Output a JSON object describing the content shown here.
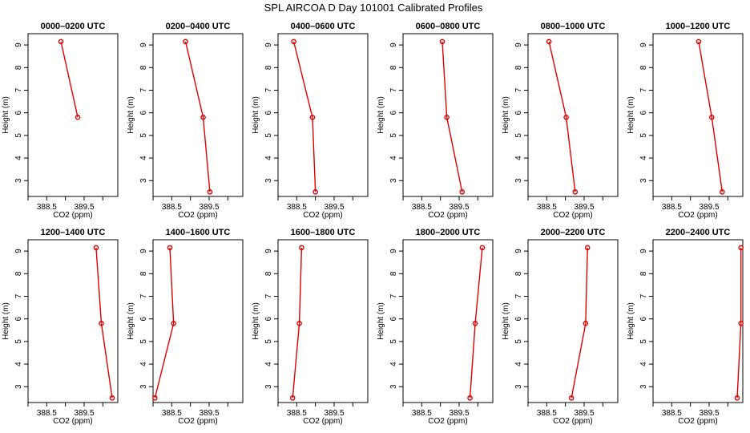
{
  "chart_data": {
    "type": "line",
    "title": "SPL AIRCOA D  Day 101001  Calibrated Profiles",
    "xlabel": "CO2 (ppm)",
    "ylabel": "Height (m)",
    "xlim": [
      388.0,
      390.4
    ],
    "ylim": [
      2.3,
      9.5
    ],
    "xticks": [
      "388.5",
      "389.5"
    ],
    "xtick_values": [
      388.5,
      389.5
    ],
    "yticks": [
      "3",
      "4",
      "5",
      "6",
      "7",
      "8",
      "9"
    ],
    "ytick_values": [
      3,
      4,
      5,
      6,
      7,
      8,
      9
    ],
    "grid": false,
    "line_color": "#dd0000",
    "panels": [
      {
        "title": "0000–0200 UTC",
        "x": [
          388.88,
          389.33
        ],
        "y": [
          9.15,
          5.8
        ]
      },
      {
        "title": "0200–0400 UTC",
        "x": [
          388.87,
          389.34,
          389.52
        ],
        "y": [
          9.15,
          5.8,
          2.5
        ]
      },
      {
        "title": "0400–0600 UTC",
        "x": [
          388.42,
          388.92,
          389.0
        ],
        "y": [
          9.15,
          5.8,
          2.5
        ]
      },
      {
        "title": "0600–0800 UTC",
        "x": [
          389.05,
          389.17,
          389.58
        ],
        "y": [
          9.15,
          5.8,
          2.5
        ]
      },
      {
        "title": "0800–1000 UTC",
        "x": [
          388.56,
          389.02,
          389.26
        ],
        "y": [
          9.15,
          5.8,
          2.5
        ]
      },
      {
        "title": "1000–1200 UTC",
        "x": [
          389.22,
          389.57,
          389.85
        ],
        "y": [
          9.15,
          5.8,
          2.5
        ]
      },
      {
        "title": "1200–1400 UTC",
        "x": [
          389.82,
          389.96,
          390.25
        ],
        "y": [
          9.15,
          5.8,
          2.5
        ]
      },
      {
        "title": "1400–1600 UTC",
        "x": [
          388.45,
          388.55,
          388.05
        ],
        "y": [
          9.15,
          5.8,
          2.5
        ]
      },
      {
        "title": "1600–1800 UTC",
        "x": [
          388.63,
          388.57,
          388.39
        ],
        "y": [
          9.15,
          5.8,
          2.5
        ]
      },
      {
        "title": "1800–2000 UTC",
        "x": [
          390.12,
          389.93,
          389.79
        ],
        "y": [
          9.15,
          5.8,
          2.5
        ]
      },
      {
        "title": "2000–2200 UTC",
        "x": [
          389.59,
          389.54,
          389.16
        ],
        "y": [
          9.15,
          5.8,
          2.5
        ]
      },
      {
        "title": "2200–2400 UTC",
        "x": [
          390.35,
          390.35,
          390.25
        ],
        "y": [
          9.15,
          5.8,
          2.5
        ]
      }
    ]
  }
}
